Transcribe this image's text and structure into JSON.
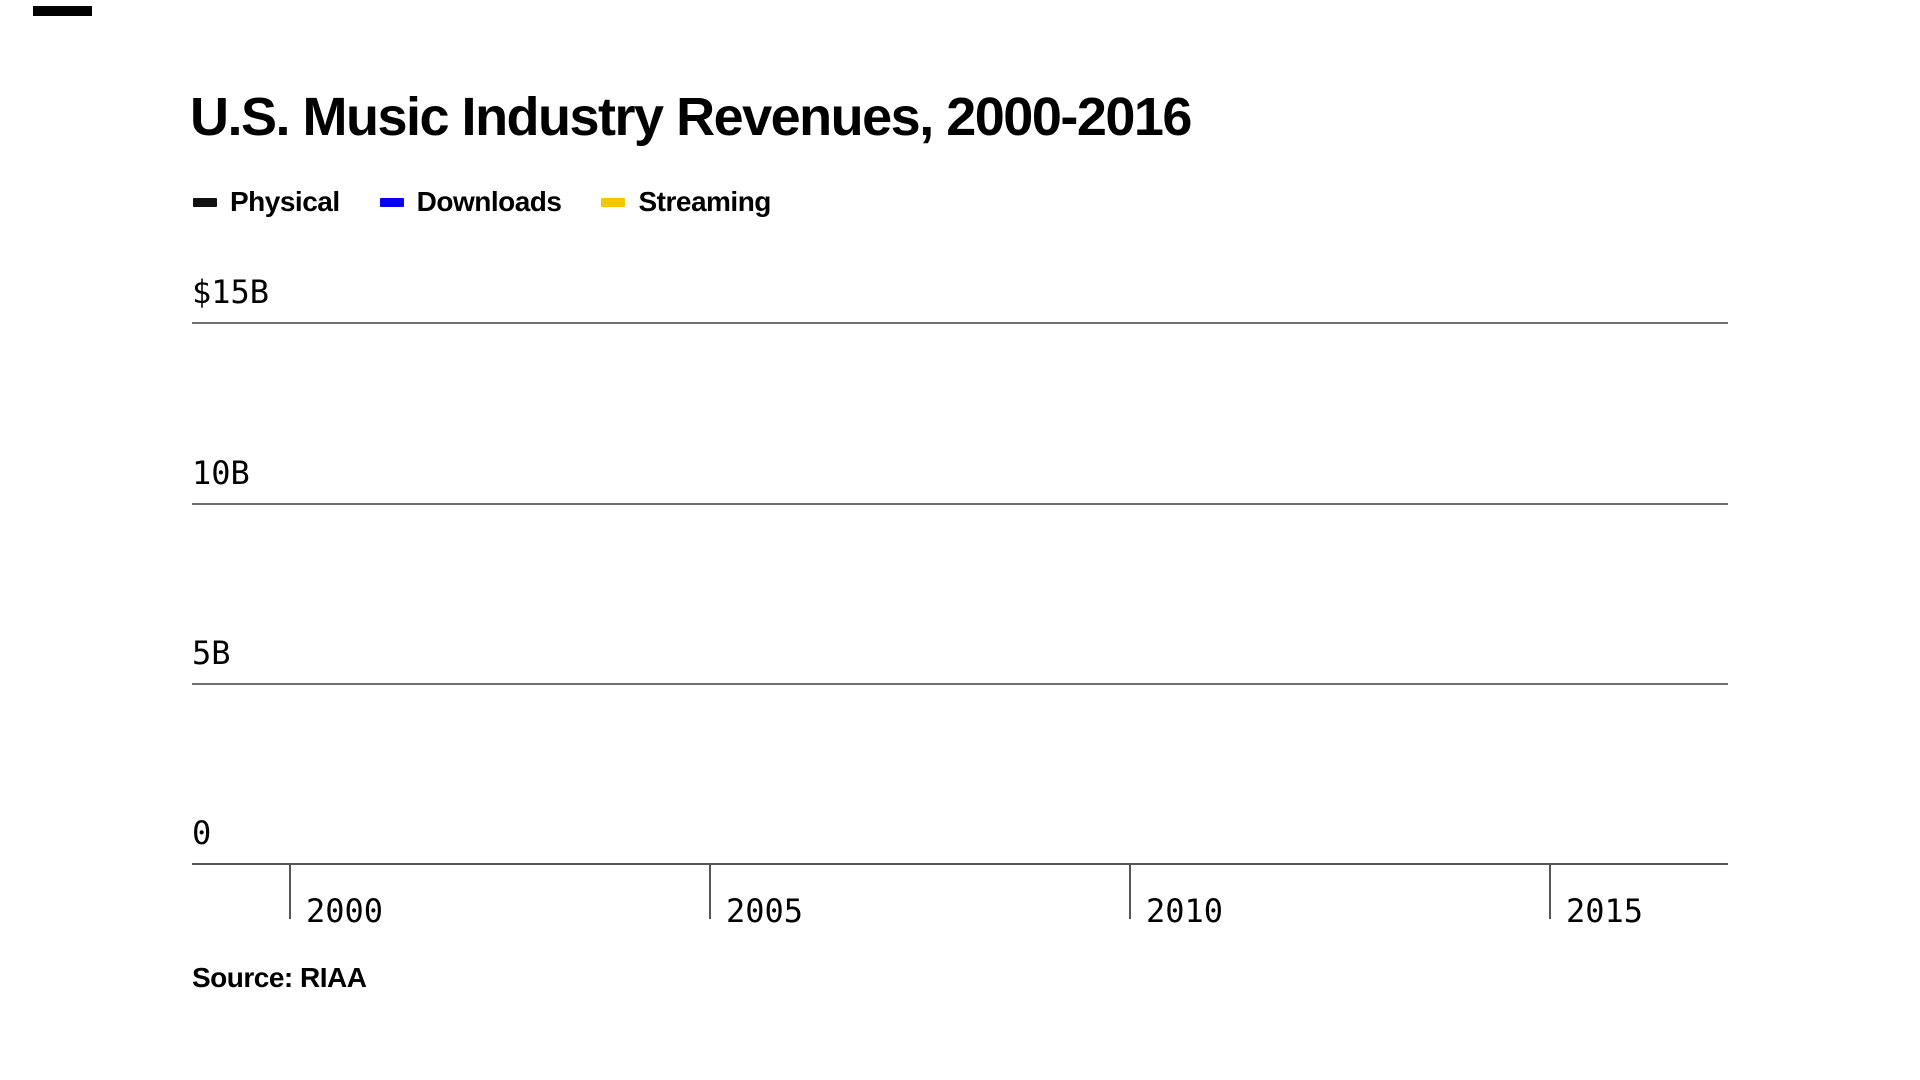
{
  "page": {
    "background": "#ffffff"
  },
  "progress_marker": {
    "color": "#000000"
  },
  "chart": {
    "title": "U.S. Music Industry Revenues, 2000-2016",
    "source_label": "Source: RIAA",
    "legend": [
      {
        "label": "Physical",
        "color": "#111111"
      },
      {
        "label": "Downloads",
        "color": "#0a00f0"
      },
      {
        "label": "Streaming",
        "color": "#f6c700"
      }
    ],
    "y_axis": {
      "ticks": [
        "$15B",
        "10B",
        "5B",
        "0"
      ]
    },
    "x_axis": {
      "ticks": [
        "2000",
        "2005",
        "2010",
        "2015"
      ]
    },
    "colors": {
      "gridline": "#6f6f6f",
      "axis": "#575757",
      "text": "#000000"
    }
  },
  "chart_data": {
    "type": "line",
    "title": "U.S. Music Industry Revenues, 2000-2016",
    "series": [
      {
        "name": "Physical",
        "color": "#111111",
        "values": []
      },
      {
        "name": "Downloads",
        "color": "#0a00f0",
        "values": []
      },
      {
        "name": "Streaming",
        "color": "#f6c700",
        "values": []
      }
    ],
    "x_ticks": [
      2000,
      2005,
      2010,
      2015
    ],
    "y_tick_labels": [
      "$15B",
      "10B",
      "5B",
      "0"
    ],
    "y_tick_values": [
      15,
      10,
      5,
      0
    ],
    "ylim": [
      0,
      15
    ],
    "xlim": [
      1998.8,
      2017.3
    ],
    "grid": true,
    "legend_position": "top-left",
    "source": "RIAA",
    "note": "Empty starting frame of animated chart — no series data plotted yet"
  }
}
